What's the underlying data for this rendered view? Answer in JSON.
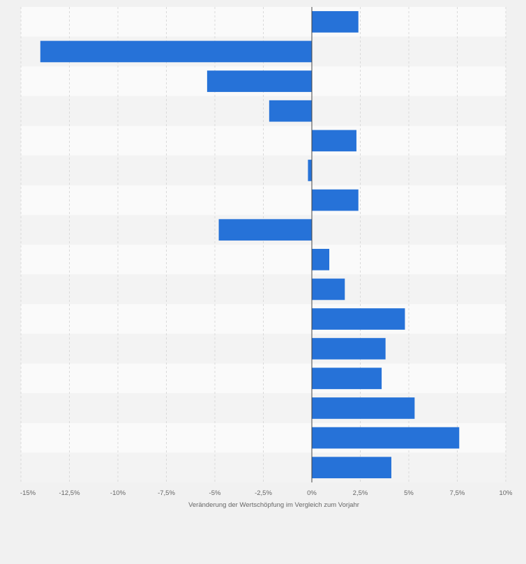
{
  "chart_data": {
    "type": "bar",
    "orientation": "horizontal",
    "title": "",
    "xlabel": "Veränderung der Wertschöpfung im Vergleich zum Vorjahr",
    "ylabel": "",
    "xlim": [
      -15,
      10
    ],
    "xticks": [
      -15,
      -12.5,
      -10,
      -7.5,
      -5,
      -2.5,
      0,
      2.5,
      5,
      7.5,
      10
    ],
    "tick_labels": [
      "-15%",
      "-12,5%",
      "-10%",
      "-7,5%",
      "-5%",
      "-2,5%",
      "0%",
      "2,5%",
      "5%",
      "7,5%",
      "10%"
    ],
    "grid": true,
    "values": [
      2.4,
      -14.0,
      -5.4,
      -2.2,
      2.3,
      -0.2,
      2.4,
      -4.8,
      0.9,
      1.7,
      4.8,
      3.8,
      3.6,
      5.3,
      7.6,
      4.1
    ],
    "colors": {
      "bar": "#2672d8",
      "band_dark": "#f3f3f3",
      "band_light": "#fafafa",
      "grid": "#d9d9d9",
      "zero_line": "#444444",
      "background": "#f1f1f1"
    }
  }
}
